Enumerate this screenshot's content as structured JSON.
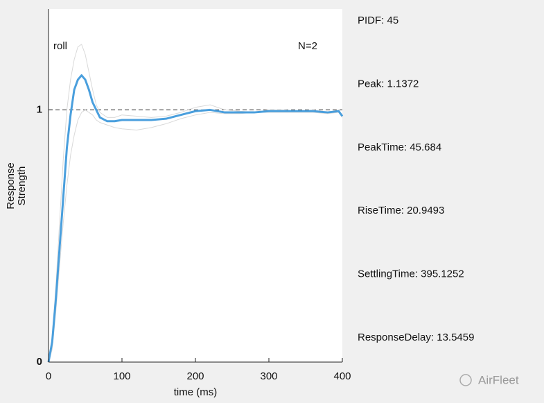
{
  "chart_data": {
    "type": "line",
    "label_top_left": "roll",
    "label_top_right": "N=2",
    "xlabel": "time (ms)",
    "ylabel": [
      "Response",
      "Strength"
    ],
    "x": [
      0,
      5,
      10,
      15,
      20,
      25,
      30,
      35,
      40,
      45,
      50,
      55,
      60,
      65,
      70,
      80,
      90,
      100,
      120,
      140,
      160,
      180,
      200,
      220,
      240,
      260,
      280,
      300,
      320,
      340,
      360,
      380,
      395,
      400
    ],
    "series": [
      {
        "color": "#d9d9d9",
        "values": [
          0,
          0.1,
          0.3,
          0.55,
          0.8,
          1.0,
          1.12,
          1.2,
          1.25,
          1.26,
          1.22,
          1.15,
          1.08,
          1.02,
          0.99,
          0.97,
          0.97,
          0.98,
          0.975,
          0.97,
          0.975,
          0.99,
          1.01,
          1.02,
          1.0,
          0.995,
          0.99,
          1.0,
          1.0,
          0.995,
          1.0,
          0.99,
          1.0,
          0.98
        ]
      },
      {
        "color": "#d9d9d9",
        "values": [
          0,
          0.05,
          0.2,
          0.38,
          0.55,
          0.7,
          0.82,
          0.9,
          0.96,
          0.99,
          1.0,
          0.99,
          0.98,
          0.96,
          0.95,
          0.94,
          0.93,
          0.925,
          0.92,
          0.93,
          0.945,
          0.965,
          0.98,
          0.99,
          0.985,
          0.985,
          0.99,
          0.99,
          0.99,
          0.99,
          0.99,
          0.985,
          0.99,
          0.97
        ]
      },
      {
        "color": "#4a9fdd",
        "values": [
          0,
          0.08,
          0.25,
          0.45,
          0.65,
          0.85,
          0.98,
          1.08,
          1.12,
          1.137,
          1.12,
          1.08,
          1.03,
          1.0,
          0.97,
          0.955,
          0.955,
          0.96,
          0.96,
          0.96,
          0.965,
          0.98,
          0.995,
          1.0,
          0.99,
          0.99,
          0.99,
          0.995,
          0.995,
          0.995,
          0.995,
          0.99,
          0.995,
          0.975
        ]
      }
    ],
    "reference_line": 1,
    "xlim": [
      0,
      400
    ],
    "xticks": [
      0,
      100,
      200,
      300,
      400
    ],
    "ylim": [
      0,
      1.4
    ],
    "yticks": [
      0,
      1
    ],
    "stats": [
      "PIDF: 45",
      "Peak: 1.1372",
      "PeakTime: 45.684",
      "RiseTime: 20.9493",
      "SettlingTime: 395.1252",
      "ResponseDelay: 13.5459"
    ]
  },
  "watermark": "AirFleet"
}
